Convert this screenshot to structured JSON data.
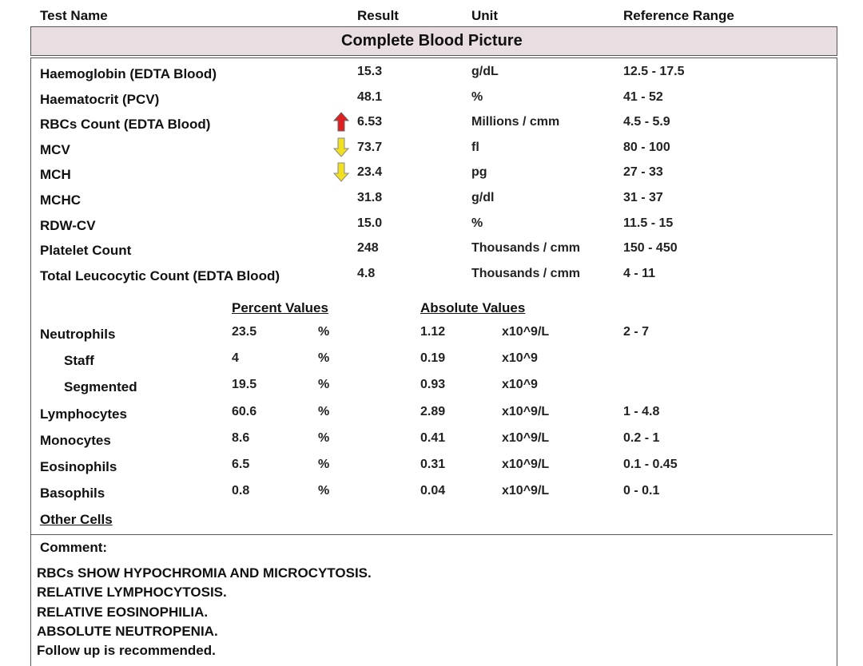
{
  "header": {
    "columns": [
      "Test Name",
      "Result",
      "Unit",
      "Reference Range"
    ]
  },
  "section_title": "Complete Blood Picture",
  "tests": [
    {
      "name": "Haemoglobin (EDTA Blood)",
      "result": "15.3",
      "unit": "g/dL",
      "range": "12.5 - 17.5"
    },
    {
      "name": "Haematocrit (PCV)",
      "result": "48.1",
      "unit": "%",
      "range": "41 - 52"
    },
    {
      "name": "RBCs Count (EDTA Blood)",
      "result": "6.53",
      "unit": "Millions / cmm",
      "range": "4.5 - 5.9"
    },
    {
      "name": "MCV",
      "result": "73.7",
      "unit": "fl",
      "range": "80 - 100"
    },
    {
      "name": "MCH",
      "result": "23.4",
      "unit": "pg",
      "range": "27 - 33"
    },
    {
      "name": "MCHC",
      "result": "31.8",
      "unit": "g/dl",
      "range": "31 - 37"
    },
    {
      "name": "RDW-CV",
      "result": "15.0",
      "unit": "%",
      "range": "11.5 - 15"
    },
    {
      "name": "Platelet Count",
      "result": "248",
      "unit": "Thousands / cmm",
      "range": "150 - 450"
    },
    {
      "name": "Total Leucocytic Count (EDTA Blood)",
      "result": "4.8",
      "unit": "Thousands / cmm",
      "range": "4 - 11"
    }
  ],
  "differential": {
    "percent_header": "Percent Values",
    "absolute_header": "Absolute Values",
    "rows": [
      {
        "name": "Neutrophils",
        "percent": "23.5",
        "percent_unit": "%",
        "absolute": "1.12",
        "absolute_unit": "x10^9/L",
        "range": "2 - 7"
      },
      {
        "name": "Staff",
        "percent": "4",
        "percent_unit": "%",
        "absolute": "0.19",
        "absolute_unit": "x10^9"
      },
      {
        "name": "Segmented",
        "percent": "19.5",
        "percent_unit": "%",
        "absolute": "0.93",
        "absolute_unit": "x10^9"
      },
      {
        "name": "Lymphocytes",
        "percent": "60.6",
        "percent_unit": "%",
        "absolute": "2.89",
        "absolute_unit": "x10^9/L",
        "range": "1 - 4.8"
      },
      {
        "name": "Monocytes",
        "percent": "8.6",
        "percent_unit": "%",
        "absolute": "0.41",
        "absolute_unit": "x10^9/L",
        "range": "0.2 - 1"
      },
      {
        "name": "Eosinophils",
        "percent": "6.5",
        "percent_unit": "%",
        "absolute": "0.31",
        "absolute_unit": "x10^9/L",
        "range": "0.1 - 0.45"
      },
      {
        "name": "Basophils",
        "percent": "0.8",
        "percent_unit": "%",
        "absolute": "0.04",
        "absolute_unit": "x10^9/L",
        "range": "0 - 0.1"
      }
    ],
    "other_cells": "Other Cells"
  },
  "comment": {
    "label": "Comment:",
    "lines": [
      "RBCs SHOW HYPOCHROMIA AND MICROCYTOSIS.",
      "RELATIVE LYMPHOCYTOSIS.",
      "RELATIVE EOSINOPHILIA.",
      "ABSOLUTE NEUTROPENIA.",
      "Follow up is recommended."
    ]
  }
}
